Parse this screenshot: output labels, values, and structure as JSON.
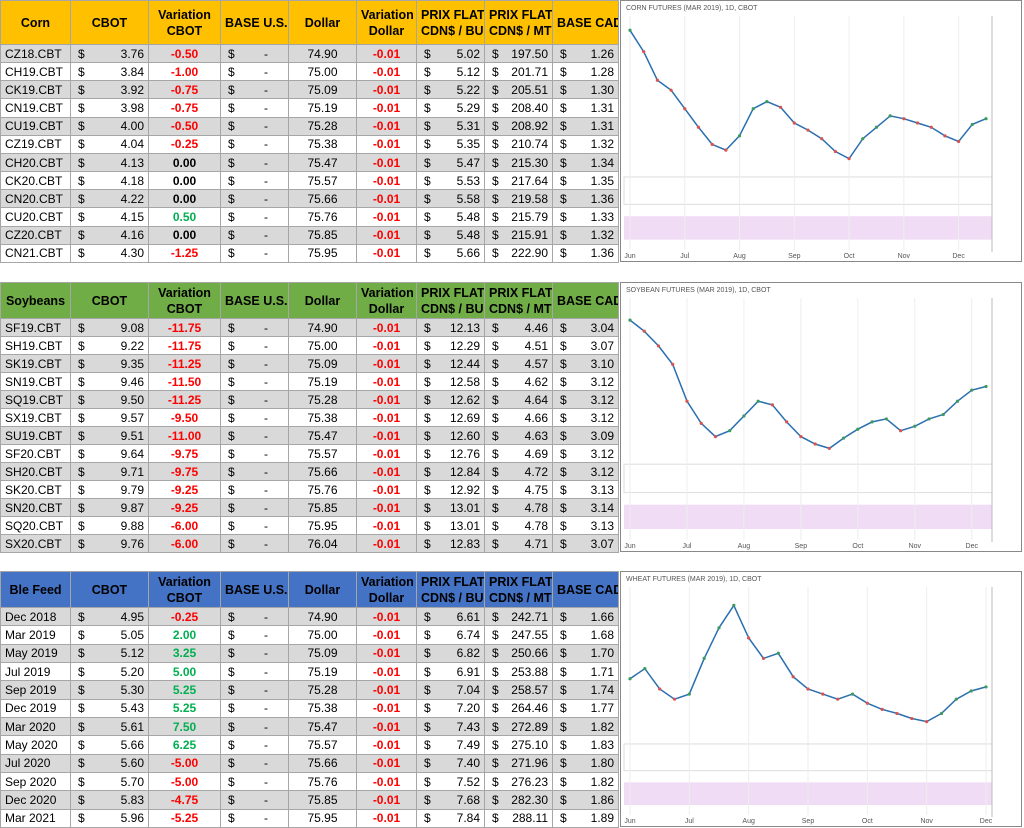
{
  "currency": "$",
  "sections": [
    {
      "header_color": "#ffc000",
      "headers": [
        [
          "Corn"
        ],
        [
          "CBOT"
        ],
        [
          "Variation",
          "CBOT"
        ],
        [
          "BASE U.S."
        ],
        [
          "Dollar"
        ],
        [
          "Variation",
          "Dollar"
        ],
        [
          "PRIX FLAT",
          "CDN$ / BU."
        ],
        [
          "PRIX FLAT",
          "CDN$ / MT"
        ],
        [
          "BASE CAD"
        ]
      ],
      "rows": [
        [
          "CZ18.CBT",
          "3.76",
          "-0.50",
          "-",
          "74.90",
          "-0.01",
          "5.02",
          "197.50",
          "1.26"
        ],
        [
          "CH19.CBT",
          "3.84",
          "-1.00",
          "-",
          "75.00",
          "-0.01",
          "5.12",
          "201.71",
          "1.28"
        ],
        [
          "CK19.CBT",
          "3.92",
          "-0.75",
          "-",
          "75.09",
          "-0.01",
          "5.22",
          "205.51",
          "1.30"
        ],
        [
          "CN19.CBT",
          "3.98",
          "-0.75",
          "-",
          "75.19",
          "-0.01",
          "5.29",
          "208.40",
          "1.31"
        ],
        [
          "CU19.CBT",
          "4.00",
          "-0.50",
          "-",
          "75.28",
          "-0.01",
          "5.31",
          "208.92",
          "1.31"
        ],
        [
          "CZ19.CBT",
          "4.04",
          "-0.25",
          "-",
          "75.38",
          "-0.01",
          "5.35",
          "210.74",
          "1.32"
        ],
        [
          "CH20.CBT",
          "4.13",
          "0.00",
          "-",
          "75.47",
          "-0.01",
          "5.47",
          "215.30",
          "1.34"
        ],
        [
          "CK20.CBT",
          "4.18",
          "0.00",
          "-",
          "75.57",
          "-0.01",
          "5.53",
          "217.64",
          "1.35"
        ],
        [
          "CN20.CBT",
          "4.22",
          "0.00",
          "-",
          "75.66",
          "-0.01",
          "5.58",
          "219.58",
          "1.36"
        ],
        [
          "CU20.CBT",
          "4.15",
          "0.50",
          "-",
          "75.76",
          "-0.01",
          "5.48",
          "215.79",
          "1.33"
        ],
        [
          "CZ20.CBT",
          "4.16",
          "0.00",
          "-",
          "75.85",
          "-0.01",
          "5.48",
          "215.91",
          "1.32"
        ],
        [
          "CN21.CBT",
          "4.30",
          "-1.25",
          "-",
          "75.95",
          "-0.01",
          "5.66",
          "222.90",
          "1.36"
        ]
      ],
      "chart": {
        "type": "line",
        "title": "CORN FUTURES (MAR 2019), 1D, CBOT",
        "color": "#2a6fb0",
        "categories": [
          "Jun",
          null,
          null,
          null,
          "Jul",
          null,
          null,
          null,
          "Aug",
          null,
          null,
          null,
          "Sep",
          null,
          null,
          null,
          "Oct",
          null,
          null,
          null,
          "Nov",
          null,
          null,
          null,
          "Dec",
          null,
          null
        ],
        "values": [
          440,
          425,
          405,
          398,
          385,
          372,
          360,
          356,
          366,
          385,
          390,
          386,
          375,
          370,
          364,
          355,
          350,
          364,
          372,
          380,
          378,
          375,
          372,
          366,
          362,
          374,
          378
        ],
        "ylim": [
          340,
          450
        ]
      }
    },
    {
      "header_color": "#70ad47",
      "headers": [
        [
          "Soybeans"
        ],
        [
          "CBOT"
        ],
        [
          "Variation",
          "CBOT"
        ],
        [
          "BASE U.S."
        ],
        [
          "Dollar"
        ],
        [
          "Variation",
          "Dollar"
        ],
        [
          "PRIX FLAT",
          "CDN$ / BU."
        ],
        [
          "PRIX FLAT",
          "CDN$ / MT"
        ],
        [
          "BASE CAD"
        ]
      ],
      "rows": [
        [
          "SF19.CBT",
          "9.08",
          "-11.75",
          "-",
          "74.90",
          "-0.01",
          "12.13",
          "4.46",
          "3.04"
        ],
        [
          "SH19.CBT",
          "9.22",
          "-11.75",
          "-",
          "75.00",
          "-0.01",
          "12.29",
          "4.51",
          "3.07"
        ],
        [
          "SK19.CBT",
          "9.35",
          "-11.25",
          "-",
          "75.09",
          "-0.01",
          "12.44",
          "4.57",
          "3.10"
        ],
        [
          "SN19.CBT",
          "9.46",
          "-11.50",
          "-",
          "75.19",
          "-0.01",
          "12.58",
          "4.62",
          "3.12"
        ],
        [
          "SQ19.CBT",
          "9.50",
          "-11.25",
          "-",
          "75.28",
          "-0.01",
          "12.62",
          "4.64",
          "3.12"
        ],
        [
          "SX19.CBT",
          "9.57",
          "-9.50",
          "-",
          "75.38",
          "-0.01",
          "12.69",
          "4.66",
          "3.12"
        ],
        [
          "SU19.CBT",
          "9.51",
          "-11.00",
          "-",
          "75.47",
          "-0.01",
          "12.60",
          "4.63",
          "3.09"
        ],
        [
          "SF20.CBT",
          "9.64",
          "-9.75",
          "-",
          "75.57",
          "-0.01",
          "12.76",
          "4.69",
          "3.12"
        ],
        [
          "SH20.CBT",
          "9.71",
          "-9.75",
          "-",
          "75.66",
          "-0.01",
          "12.84",
          "4.72",
          "3.12"
        ],
        [
          "SK20.CBT",
          "9.79",
          "-9.25",
          "-",
          "75.76",
          "-0.01",
          "12.92",
          "4.75",
          "3.13"
        ],
        [
          "SN20.CBT",
          "9.87",
          "-9.25",
          "-",
          "75.85",
          "-0.01",
          "13.01",
          "4.78",
          "3.14"
        ],
        [
          "SQ20.CBT",
          "9.88",
          "-6.00",
          "-",
          "75.95",
          "-0.01",
          "13.01",
          "4.78",
          "3.13"
        ],
        [
          "SX20.CBT",
          "9.76",
          "-6.00",
          "-",
          "76.04",
          "-0.01",
          "12.83",
          "4.71",
          "3.07"
        ]
      ],
      "chart": {
        "type": "line",
        "title": "SOYBEAN FUTURES (MAR 2019), 1D, CBOT",
        "color": "#2a6fb0",
        "categories": [
          "Jun",
          null,
          null,
          null,
          "Jul",
          null,
          null,
          null,
          "Aug",
          null,
          null,
          null,
          "Sep",
          null,
          null,
          null,
          "Oct",
          null,
          null,
          null,
          "Nov",
          null,
          null,
          null,
          "Dec",
          null
        ],
        "values": [
          1010,
          995,
          975,
          950,
          900,
          870,
          852,
          860,
          880,
          900,
          895,
          872,
          852,
          842,
          836,
          850,
          862,
          872,
          876,
          860,
          866,
          876,
          882,
          900,
          915,
          920
        ],
        "ylim": [
          820,
          1040
        ]
      }
    },
    {
      "header_color": "#4472c4",
      "headers": [
        [
          "Ble Feed"
        ],
        [
          "CBOT"
        ],
        [
          "Variation",
          "CBOT"
        ],
        [
          "BASE U.S."
        ],
        [
          "Dollar"
        ],
        [
          "Variation",
          "Dollar"
        ],
        [
          "PRIX FLAT",
          "CDN$ / BU."
        ],
        [
          "PRIX FLAT",
          "CDN$ / MT"
        ],
        [
          "BASE CAD"
        ]
      ],
      "rows": [
        [
          "Dec 2018",
          "4.95",
          "-0.25",
          "-",
          "74.90",
          "-0.01",
          "6.61",
          "242.71",
          "1.66"
        ],
        [
          "Mar 2019",
          "5.05",
          "2.00",
          "-",
          "75.00",
          "-0.01",
          "6.74",
          "247.55",
          "1.68"
        ],
        [
          "May 2019",
          "5.12",
          "3.25",
          "-",
          "75.09",
          "-0.01",
          "6.82",
          "250.66",
          "1.70"
        ],
        [
          "Jul 2019",
          "5.20",
          "5.00",
          "-",
          "75.19",
          "-0.01",
          "6.91",
          "253.88",
          "1.71"
        ],
        [
          "Sep 2019",
          "5.30",
          "5.25",
          "-",
          "75.28",
          "-0.01",
          "7.04",
          "258.57",
          "1.74"
        ],
        [
          "Dec 2019",
          "5.43",
          "5.25",
          "-",
          "75.38",
          "-0.01",
          "7.20",
          "264.46",
          "1.77"
        ],
        [
          "Mar 2020",
          "5.61",
          "7.50",
          "-",
          "75.47",
          "-0.01",
          "7.43",
          "272.89",
          "1.82"
        ],
        [
          "May 2020",
          "5.66",
          "6.25",
          "-",
          "75.57",
          "-0.01",
          "7.49",
          "275.10",
          "1.83"
        ],
        [
          "Jul 2020",
          "5.60",
          "-5.00",
          "-",
          "75.66",
          "-0.01",
          "7.40",
          "271.96",
          "1.80"
        ],
        [
          "Sep 2020",
          "5.70",
          "-5.00",
          "-",
          "75.76",
          "-0.01",
          "7.52",
          "276.23",
          "1.82"
        ],
        [
          "Dec 2020",
          "5.83",
          "-4.75",
          "-",
          "75.85",
          "-0.01",
          "7.68",
          "282.30",
          "1.86"
        ],
        [
          "Mar 2021",
          "5.96",
          "-5.25",
          "-",
          "75.95",
          "-0.01",
          "7.84",
          "288.11",
          "1.89"
        ]
      ],
      "chart": {
        "type": "line",
        "title": "WHEAT FUTURES (MAR 2019), 1D, CBOT",
        "color": "#2a6fb0",
        "categories": [
          "Jun",
          null,
          null,
          null,
          "Jul",
          null,
          null,
          null,
          "Aug",
          null,
          null,
          null,
          "Sep",
          null,
          null,
          null,
          "Oct",
          null,
          null,
          null,
          "Nov",
          null,
          null,
          null,
          "Dec"
        ],
        "values": [
          520,
          530,
          510,
          500,
          505,
          540,
          570,
          592,
          560,
          540,
          545,
          522,
          510,
          505,
          500,
          505,
          496,
          490,
          486,
          481,
          478,
          486,
          500,
          508,
          512
        ],
        "ylim": [
          460,
          610
        ]
      }
    }
  ]
}
